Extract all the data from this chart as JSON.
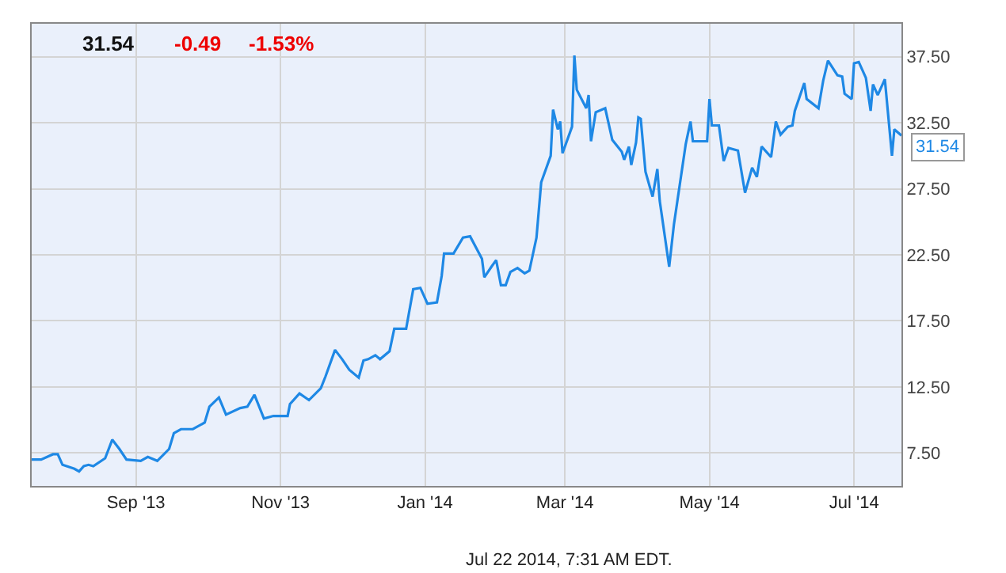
{
  "chart_data": {
    "type": "line",
    "x": [
      "2013-07-19",
      "2013-07-23",
      "2013-07-28",
      "2013-07-30",
      "2013-08-01",
      "2013-08-06",
      "2013-08-08",
      "2013-08-10",
      "2013-08-12",
      "2013-08-14",
      "2013-08-19",
      "2013-08-22",
      "2013-08-25",
      "2013-08-28",
      "2013-09-03",
      "2013-09-06",
      "2013-09-10",
      "2013-09-15",
      "2013-09-17",
      "2013-09-20",
      "2013-09-25",
      "2013-09-30",
      "2013-10-02",
      "2013-10-06",
      "2013-10-09",
      "2013-10-15",
      "2013-10-18",
      "2013-10-21",
      "2013-10-25",
      "2013-10-29",
      "2013-11-04",
      "2013-11-05",
      "2013-11-09",
      "2013-11-13",
      "2013-11-18",
      "2013-11-20",
      "2013-11-24",
      "2013-11-27",
      "2013-11-30",
      "2013-12-04",
      "2013-12-06",
      "2013-12-08",
      "2013-12-11",
      "2013-12-13",
      "2013-12-17",
      "2013-12-19",
      "2013-12-24",
      "2013-12-27",
      "2013-12-30",
      "2014-01-02",
      "2014-01-06",
      "2014-01-08",
      "2014-01-09",
      "2014-01-13",
      "2014-01-17",
      "2014-01-20",
      "2014-01-25",
      "2014-01-26",
      "2014-01-29",
      "2014-01-31",
      "2014-02-02",
      "2014-02-04",
      "2014-02-06",
      "2014-02-09",
      "2014-02-12",
      "2014-02-14",
      "2014-02-17",
      "2014-02-19",
      "2014-02-23",
      "2014-02-24",
      "2014-02-26",
      "2014-02-27",
      "2014-02-28",
      "2014-03-04",
      "2014-03-05",
      "2014-03-06",
      "2014-03-10",
      "2014-03-11",
      "2014-03-12",
      "2014-03-14",
      "2014-03-18",
      "2014-03-21",
      "2014-03-25",
      "2014-03-26",
      "2014-03-28",
      "2014-03-29",
      "2014-03-31",
      "2014-04-01",
      "2014-04-02",
      "2014-04-04",
      "2014-04-07",
      "2014-04-09",
      "2014-04-10",
      "2014-04-14",
      "2014-04-16",
      "2014-04-21",
      "2014-04-23",
      "2014-04-24",
      "2014-04-30",
      "2014-05-01",
      "2014-05-02",
      "2014-05-05",
      "2014-05-07",
      "2014-05-09",
      "2014-05-13",
      "2014-05-16",
      "2014-05-19",
      "2014-05-21",
      "2014-05-23",
      "2014-05-27",
      "2014-05-29",
      "2014-05-31",
      "2014-06-03",
      "2014-06-05",
      "2014-06-06",
      "2014-06-10",
      "2014-06-11",
      "2014-06-16",
      "2014-06-18",
      "2014-06-20",
      "2014-06-24",
      "2014-06-26",
      "2014-06-27",
      "2014-06-30",
      "2014-07-01",
      "2014-07-03",
      "2014-07-06",
      "2014-07-08",
      "2014-07-09",
      "2014-07-11",
      "2014-07-14",
      "2014-07-17",
      "2014-07-18",
      "2014-07-21"
    ],
    "series": [
      {
        "color": "#1e88e5",
        "values": [
          7.0,
          7.0,
          7.4,
          7.4,
          6.6,
          6.3,
          6.1,
          6.5,
          6.6,
          6.5,
          7.1,
          8.5,
          7.8,
          7.0,
          6.9,
          7.2,
          6.9,
          7.8,
          9.0,
          9.3,
          9.3,
          9.8,
          11.0,
          11.7,
          10.4,
          10.9,
          11.0,
          11.9,
          10.1,
          10.3,
          10.3,
          11.2,
          12.0,
          11.5,
          12.4,
          13.3,
          15.3,
          14.6,
          13.8,
          13.2,
          14.5,
          14.6,
          14.9,
          14.6,
          15.2,
          16.9,
          16.9,
          19.9,
          20.0,
          18.8,
          18.9,
          20.9,
          22.6,
          22.6,
          23.8,
          23.9,
          22.2,
          20.8,
          21.6,
          22.1,
          20.2,
          20.2,
          21.2,
          21.5,
          21.1,
          21.3,
          23.8,
          28.0,
          30.0,
          33.5,
          32.0,
          32.6,
          30.2,
          32.2,
          37.6,
          35.0,
          33.6,
          34.6,
          31.1,
          33.3,
          33.6,
          31.2,
          30.3,
          29.7,
          30.7,
          29.3,
          31.0,
          32.9,
          32.8,
          28.8,
          26.9,
          29.0,
          26.6,
          21.6,
          24.8,
          30.9,
          32.6,
          31.1,
          31.1,
          34.3,
          32.3,
          32.3,
          29.6,
          30.6,
          30.4,
          27.2,
          29.1,
          28.4,
          30.7,
          29.9,
          32.6,
          31.6,
          32.2,
          32.3,
          33.4,
          35.5,
          34.3,
          33.6,
          35.7,
          37.2,
          36.1,
          36.0,
          34.7,
          34.3,
          37.0,
          37.1,
          35.9,
          33.4,
          35.4,
          34.6,
          35.8,
          30.0,
          32.0,
          31.54
        ]
      }
    ],
    "xlim": [
      "2013-07-19",
      "2014-07-21"
    ],
    "xticks": [
      {
        "value": "2013-09-01",
        "label": "Sep '13"
      },
      {
        "value": "2013-11-01",
        "label": "Nov '13"
      },
      {
        "value": "2014-01-01",
        "label": "Jan '14"
      },
      {
        "value": "2014-03-01",
        "label": "Mar '14"
      },
      {
        "value": "2014-05-01",
        "label": "May '14"
      },
      {
        "value": "2014-07-01",
        "label": "Jul '14"
      }
    ],
    "ylim": [
      5,
      40
    ],
    "yticks": [
      {
        "value": 7.5,
        "label": "7.50"
      },
      {
        "value": 12.5,
        "label": "12.50"
      },
      {
        "value": 17.5,
        "label": "17.50"
      },
      {
        "value": 22.5,
        "label": "22.50"
      },
      {
        "value": 27.5,
        "label": "27.50"
      },
      {
        "value": 32.5,
        "label": "32.50"
      },
      {
        "value": 37.5,
        "label": "37.50"
      }
    ],
    "grid": true,
    "annotations": [
      "31.54",
      "-0.49",
      "-1.53%",
      "Jul 22 2014, 7:31 AM EDT.",
      {
        "text": "31.54",
        "x": "2014-07-21",
        "y": 31.54
      }
    ]
  }
}
